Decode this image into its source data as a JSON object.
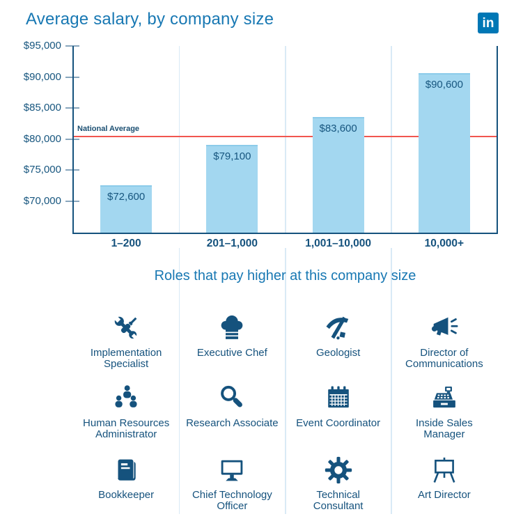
{
  "header": {
    "title": "Average salary, by company size",
    "logo_text": "in"
  },
  "colors": {
    "title_blue": "#1878b3",
    "navy": "#15527d",
    "bar_fill": "#a3d7f0",
    "bar_top_edge": "#8ccbea",
    "reference_red": "#f1564f",
    "separator_blue": "#d9eaf6",
    "tick_gray_blue": "#88a6bd",
    "linkedin_blue": "#0077b5"
  },
  "chart_data": {
    "type": "bar",
    "title": "Average salary, by company size",
    "categories": [
      "1–200",
      "201–1,000",
      "1,001–10,000",
      "10,000+"
    ],
    "values": [
      72600,
      79100,
      83600,
      90600
    ],
    "value_labels": [
      "$72,600",
      "$79,100",
      "$83,600",
      "$90,600"
    ],
    "xlabel": "",
    "ylabel": "",
    "ylim": [
      64800,
      95000
    ],
    "yticks": [
      70000,
      75000,
      80000,
      85000,
      90000,
      95000
    ],
    "ytick_labels": [
      "$70,000",
      "$75,000",
      "$80,000",
      "$85,000",
      "$90,000",
      "$95,000"
    ],
    "grid": "vertical category separators",
    "legend": "none",
    "reference_line": {
      "label": "National Average",
      "value": 80400
    }
  },
  "roles_section": {
    "title": "Roles that pay higher at this company size",
    "roles": [
      {
        "icon": "wrench-screwdriver-icon",
        "label": "Implementation\nSpecialist"
      },
      {
        "icon": "chef-hat-icon",
        "label": "Executive Chef"
      },
      {
        "icon": "rock-pick-icon",
        "label": "Geologist"
      },
      {
        "icon": "megaphone-icon",
        "label": "Director of\nCommunications"
      },
      {
        "icon": "people-group-icon",
        "label": "Human Resources\nAdministrator"
      },
      {
        "icon": "magnifier-icon",
        "label": "Research Associate"
      },
      {
        "icon": "calendar-icon",
        "label": "Event Coordinator"
      },
      {
        "icon": "cash-register-icon",
        "label": "Inside Sales\nManager"
      },
      {
        "icon": "book-icon",
        "label": "Bookkeeper"
      },
      {
        "icon": "monitor-icon",
        "label": "Chief Technology\nOfficer"
      },
      {
        "icon": "gear-icon",
        "label": "Technical\nConsultant"
      },
      {
        "icon": "easel-icon",
        "label": "Art Director"
      }
    ]
  }
}
